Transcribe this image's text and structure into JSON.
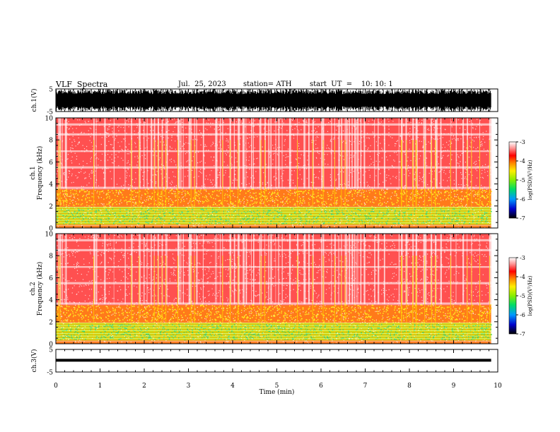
{
  "header": {
    "title": "VLF  Spectra",
    "date": "Jul.  25, 2023",
    "station": "station= ATH",
    "start": "start  UT  =    10: 10: 1"
  },
  "chart_data": [
    {
      "type": "line",
      "ylabel": "ch.1(V)",
      "yticks": [
        "5",
        "-5"
      ],
      "ylim": [
        -5,
        5
      ],
      "xlim": [
        0,
        10
      ],
      "style": "dense waveform, amplitude near full scale"
    },
    {
      "type": "heatmap",
      "ylabel": "Frequency  (kHz)",
      "channel_label": "ch.1",
      "yticks": [
        "0",
        "2",
        "4",
        "6",
        "8",
        "10"
      ],
      "ylim": [
        0,
        10
      ],
      "xlim": [
        0,
        9.85
      ],
      "colorbar": {
        "label": "log(PSD)(V²/Hz)",
        "ticks": [
          "-3",
          "-4",
          "-5",
          "-6",
          "-7"
        ],
        "range": [
          -7,
          -3
        ]
      },
      "bands_khz": [
        [
          0,
          0.3,
          "orange"
        ],
        [
          0.3,
          1.9,
          "yellow-green"
        ],
        [
          1.9,
          3.5,
          "orange"
        ],
        [
          3.5,
          10,
          "red-white"
        ]
      ]
    },
    {
      "type": "heatmap",
      "ylabel": "Frequency  (kHz)",
      "channel_label": "ch.2",
      "yticks": [
        "0",
        "2",
        "4",
        "6",
        "8",
        "10"
      ],
      "ylim": [
        0,
        10
      ],
      "xlim": [
        0,
        9.85
      ],
      "colorbar": {
        "label": "log(PSD)(V²/Hz)",
        "ticks": [
          "-3",
          "-4",
          "-5",
          "-6",
          "-7"
        ],
        "range": [
          -7,
          -3
        ]
      },
      "bands_khz": [
        [
          0,
          0.3,
          "orange"
        ],
        [
          0.3,
          1.9,
          "yellow-green"
        ],
        [
          1.9,
          3.5,
          "orange"
        ],
        [
          3.5,
          10,
          "red-white"
        ]
      ]
    },
    {
      "type": "line",
      "ylabel": "ch.3(V)",
      "yticks": [
        "5",
        "-5"
      ],
      "ylim": [
        -5,
        5
      ],
      "xlim": [
        0,
        10
      ],
      "style": "flat thick line near 0 V"
    }
  ],
  "xaxis": {
    "label": "Time  (min)",
    "ticks": [
      "0",
      "1",
      "2",
      "3",
      "4",
      "5",
      "6",
      "7",
      "8",
      "9",
      "10"
    ],
    "range": [
      0,
      10
    ]
  }
}
